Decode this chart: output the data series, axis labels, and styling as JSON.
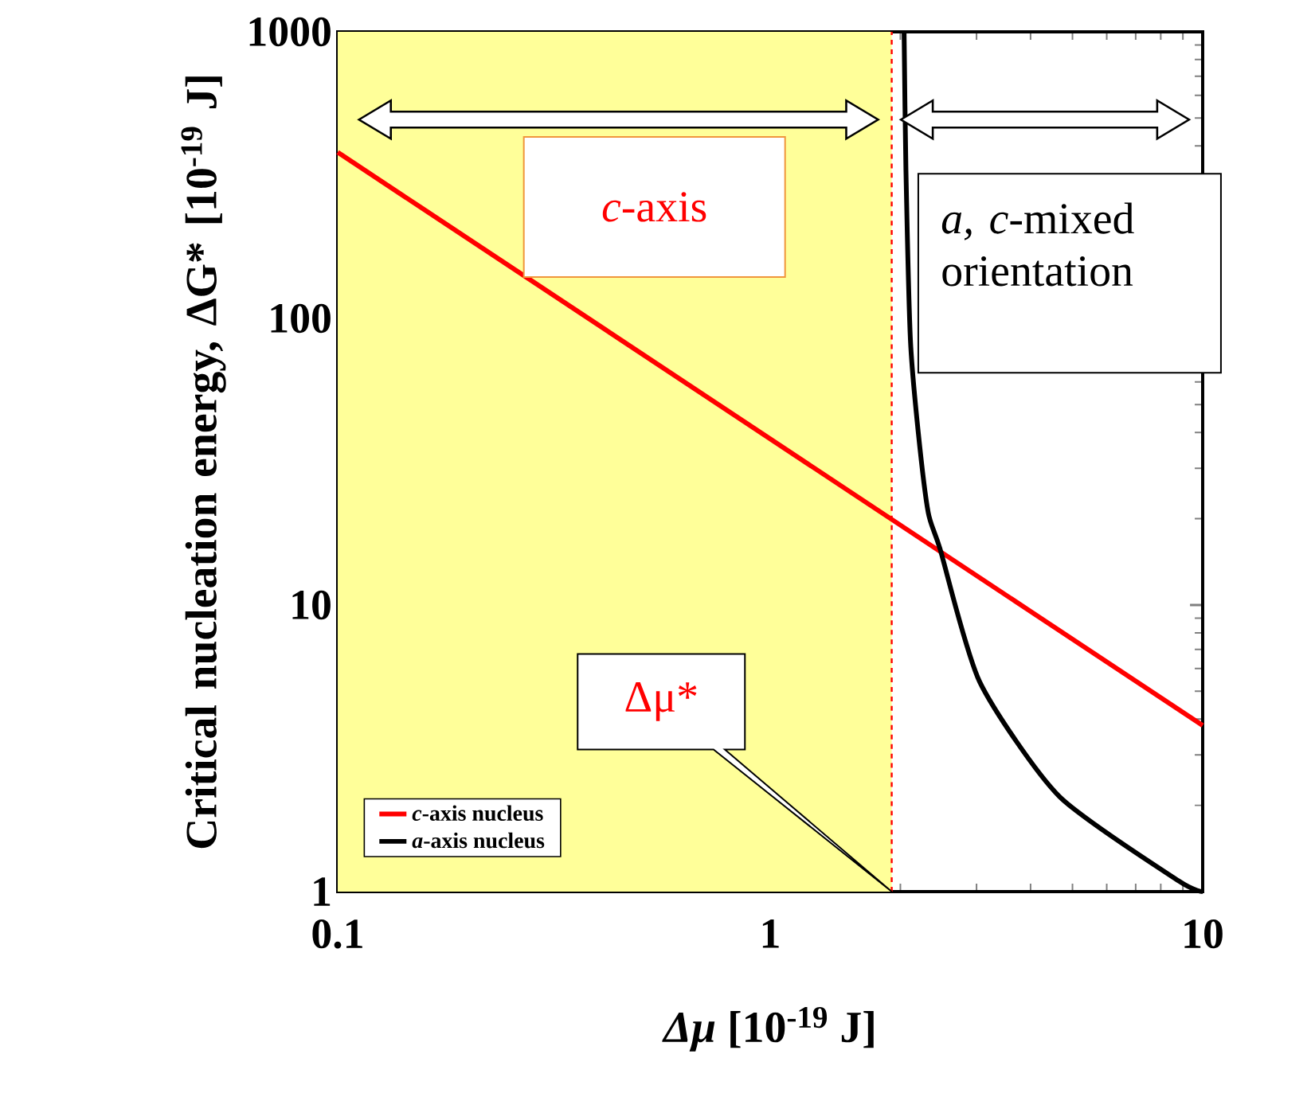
{
  "chart_data": {
    "type": "line",
    "xlabel": "*Δμ*  [10$^{-19}$ J]",
    "ylabel": "Critical nucleation energy, ΔG*  [10$^{-19}$ J]",
    "log": "xy",
    "xlim": [
      0.1,
      10
    ],
    "ylim": [
      1,
      1000
    ],
    "xticks": [
      0.1,
      1,
      10
    ],
    "yticks": [
      1,
      10,
      100,
      1000
    ],
    "series": [
      {
        "name": "*c*-axis nucleus",
        "color": "#ff0000",
        "x": [
          0.1,
          10
        ],
        "values": [
          380,
          3.8
        ]
      },
      {
        "name": "*a*-axis nucleus",
        "color": "#000000",
        "x": [
          2.04,
          2.06,
          2.11,
          2.2,
          2.32,
          2.47,
          3.05,
          4.66,
          8.8,
          10
        ],
        "values": [
          1000,
          330,
          84,
          40,
          21,
          15.7,
          5.4,
          2.15,
          1.09,
          1
        ]
      }
    ],
    "bands": [
      {
        "axis": "x",
        "from": 0.1,
        "to": 1.91,
        "color": "#ffff99"
      }
    ],
    "ref_lines": [
      {
        "axis": "x",
        "value": 1.91,
        "color": "#ff0000",
        "line_style": "dashed"
      }
    ],
    "annotations": [
      "*c*-axis",
      "*a, c*-mixed orientation",
      "Δμ*"
    ],
    "legend": "bottom left",
    "line_style": "solid",
    "marker": "none",
    "grid": false
  }
}
